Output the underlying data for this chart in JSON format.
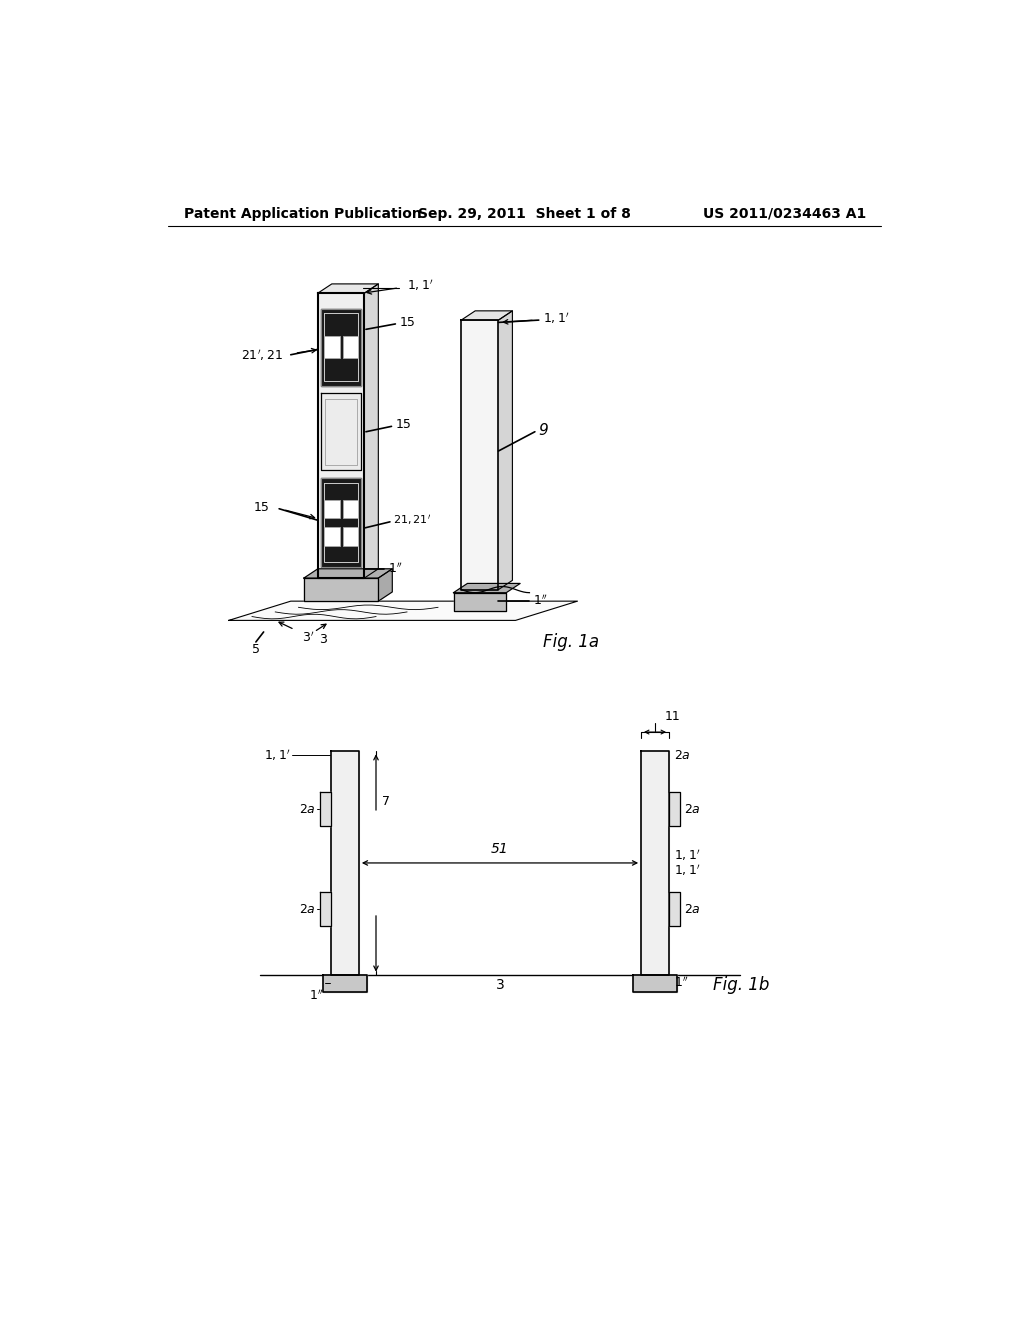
{
  "background_color": "#ffffff",
  "header_left": "Patent Application Publication",
  "header_center": "Sep. 29, 2011  Sheet 1 of 8",
  "header_right": "US 2011/0234463 A1",
  "fig1a_label": "Fig. 1a",
  "fig1b_label": "Fig. 1b",
  "line_color": "#000000",
  "line_width": 1.2,
  "annotation_fontsize": 9,
  "header_fontsize": 9
}
